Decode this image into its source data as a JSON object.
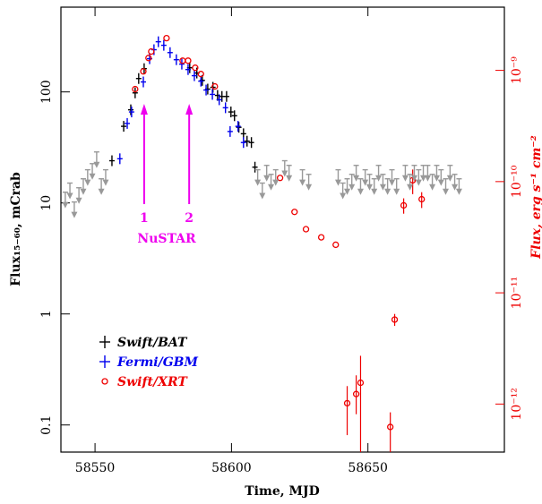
{
  "chart_data": {
    "type": "scatter",
    "x_label": "Time, MJD",
    "y_label": "Flux₁₅₋₆₀, mCrab",
    "y2_label": "Flux, erg s⁻¹ cm⁻²",
    "xlim": [
      58537.5,
      58700
    ],
    "xticks": [
      58550,
      58600,
      58650
    ],
    "ylim": [
      0.057,
      580
    ],
    "yticks": [
      0.1,
      1,
      10,
      100
    ],
    "y2lim": [
      3.7e-13,
      3.7e-09
    ],
    "y2ticks": [
      {
        "value": 1e-12,
        "label": "10⁻¹²"
      },
      {
        "value": 1e-11,
        "label": "10⁻¹¹"
      },
      {
        "value": 1e-10,
        "label": "10⁻¹⁰"
      },
      {
        "value": 1e-09,
        "label": "10⁻⁹"
      }
    ],
    "log_y": true,
    "series": [
      {
        "name": "Swift/BAT",
        "color": "#000000",
        "marker": "cross",
        "x": [
          58556.2,
          58560.5,
          58563.1,
          58564.7,
          58566.0,
          58568.0,
          58584.7,
          58587.3,
          58589.3,
          58591.3,
          58593.2,
          58594.9,
          58596.5,
          58598.2,
          58599.8,
          58601.1,
          58602.7,
          58604.4,
          58605.7,
          58607.3,
          58608.6
        ],
        "values": [
          24,
          49,
          69,
          98,
          132,
          162,
          165,
          148,
          127,
          106,
          110,
          93,
          91,
          91,
          66,
          61,
          48,
          42,
          36,
          35,
          21
        ]
      },
      {
        "name": "Fermi/GBM",
        "color": "#0000ee",
        "marker": "cross",
        "x": [
          58559.1,
          58561.8,
          58563.4,
          58567.7,
          58570.0,
          58571.6,
          58573.2,
          58575.2,
          58577.5,
          58579.8,
          58581.8,
          58584.1,
          58586.4,
          58588.8,
          58590.7,
          58593.0,
          58595.5,
          58597.8,
          58599.5,
          58602.4,
          58604.4
        ],
        "values": [
          25,
          52,
          66,
          123,
          199,
          240,
          283,
          263,
          226,
          195,
          178,
          159,
          140,
          125,
          104,
          95,
          85,
          72,
          44,
          49,
          35
        ]
      },
      {
        "name": "Swift/XRT",
        "color": "#ee0000",
        "marker": "circle",
        "x": [
          58564.7,
          58567.7,
          58569.6,
          58570.6,
          58576.2,
          58582.1,
          58584.1,
          58586.7,
          58588.8,
          58593.9,
          58617.8,
          58623.1,
          58627.3,
          58632.9,
          58638.2,
          58642.4,
          58645.7,
          58647.3,
          58658.2,
          58659.8,
          58663.1,
          58666.4,
          58669.7
        ],
        "values": [
          106,
          153,
          202,
          231,
          305,
          191,
          191,
          165,
          145,
          112,
          16.8,
          8.3,
          5.8,
          4.9,
          4.2,
          0.157,
          0.19,
          0.24,
          0.096,
          0.89,
          9.5,
          16,
          10.8
        ],
        "lower": [
          null,
          null,
          null,
          null,
          null,
          null,
          null,
          null,
          null,
          null,
          null,
          null,
          null,
          null,
          null,
          0.081,
          0.125,
          0.057,
          0.057,
          0.78,
          8,
          12,
          9
        ],
        "upper": [
          null,
          null,
          null,
          null,
          null,
          null,
          null,
          null,
          null,
          null,
          null,
          null,
          null,
          null,
          null,
          0.224,
          0.28,
          0.42,
          0.13,
          1,
          11,
          20,
          12.5
        ]
      },
      {
        "color": "#999999",
        "marker": "upper-limit",
        "x": [
          58539.1,
          58540.8,
          58542.4,
          58544.1,
          58545.7,
          58547.3,
          58549.0,
          58550.6,
          58552.3,
          58553.9,
          58609.6,
          58611.3,
          58612.9,
          58614.5,
          58616.2,
          58619.5,
          58621.1,
          58626.0,
          58628.3,
          58639.1,
          58640.8,
          58642.4,
          58644.1,
          58645.7,
          58647.3,
          58649.0,
          58650.6,
          58652.3,
          58653.9,
          58655.5,
          58657.2,
          58658.8,
          58660.5,
          58663.7,
          58665.4,
          58667.0,
          58668.6,
          58670.3,
          58671.9,
          58673.6,
          58675.2,
          58676.8,
          58678.5,
          58680.1,
          58681.8,
          58683.4
        ],
        "values": [
          12.5,
          15.1,
          10.2,
          13.7,
          16.5,
          19.9,
          22.6,
          28.8,
          16.5,
          19.9,
          19.9,
          15.1,
          21.8,
          18.1,
          19.9,
          24,
          21.8,
          19.9,
          18.1,
          19.9,
          15.1,
          16.5,
          18.1,
          21.8,
          16.5,
          19.9,
          18.1,
          16.5,
          21.8,
          18.1,
          16.5,
          19.9,
          16.5,
          21.8,
          18.1,
          21.8,
          19.9,
          21.8,
          21.8,
          18.1,
          21.8,
          19.9,
          16.5,
          21.8,
          18.1,
          16.5
        ]
      }
    ],
    "annotations": {
      "color": "#ee00ee",
      "text": "NuSTAR",
      "markers": [
        {
          "label": "1",
          "x": 58568
        },
        {
          "label": "2",
          "x": 58584.5
        }
      ]
    }
  }
}
